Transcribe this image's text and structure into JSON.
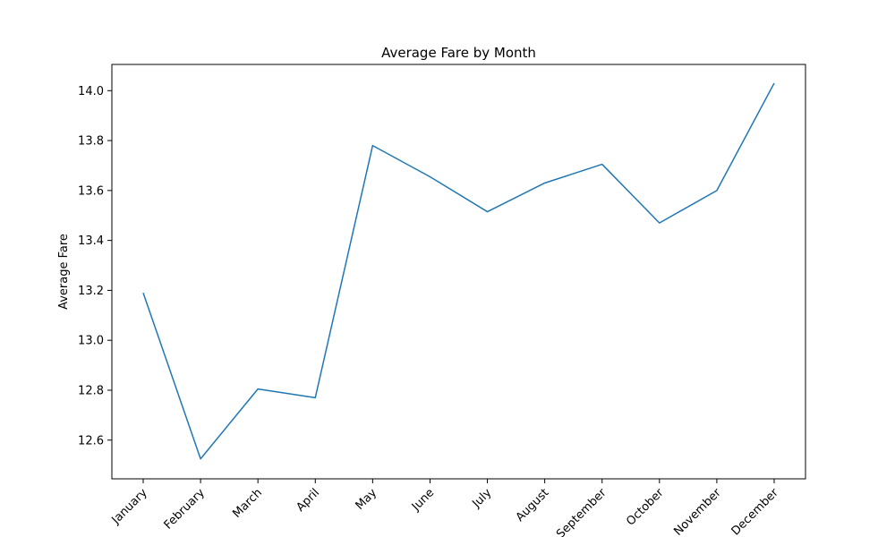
{
  "chart_data": {
    "type": "line",
    "title": "Average Fare by Month",
    "xlabel": "",
    "ylabel": "Average Fare",
    "categories": [
      "January",
      "February",
      "March",
      "April",
      "May",
      "June",
      "July",
      "August",
      "September",
      "October",
      "November",
      "December"
    ],
    "series": [
      {
        "color": "#1f77b4",
        "values": [
          13.19,
          12.525,
          12.805,
          12.77,
          13.78,
          13.655,
          13.515,
          13.63,
          13.705,
          13.47,
          13.6,
          14.03
        ]
      }
    ],
    "yticks": [
      "12.6",
      "12.8",
      "13.0",
      "13.2",
      "13.4",
      "13.6",
      "13.8",
      "14.0"
    ],
    "ylim": [
      12.445,
      14.105
    ],
    "grid": false,
    "legend": "none"
  }
}
